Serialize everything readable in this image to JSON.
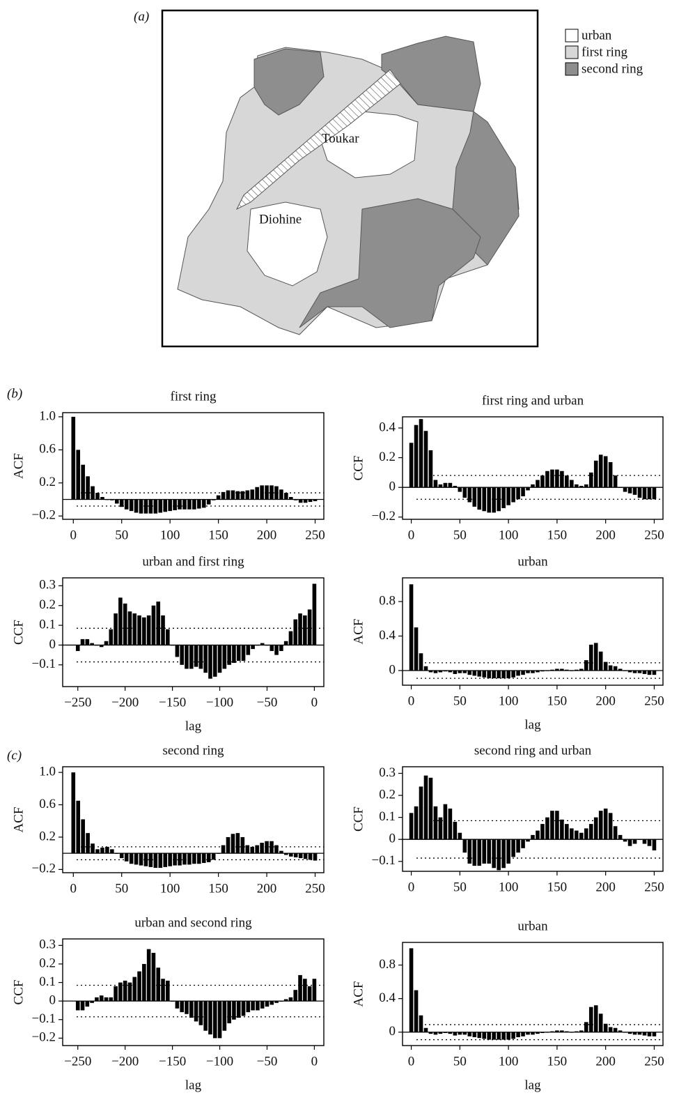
{
  "panel_a": {
    "label": "(a)",
    "legend": [
      "urban",
      "first ring",
      "second ring"
    ],
    "places": [
      "Toukar",
      "Diohine"
    ]
  },
  "panel_labels": [
    "(b)",
    "(c)"
  ],
  "chart_data": [
    {
      "type": "bar",
      "title": "first ring",
      "ylabel": "ACF",
      "x": [
        0,
        5,
        10,
        15,
        20,
        25,
        30,
        35,
        40,
        45,
        50,
        55,
        60,
        65,
        70,
        75,
        80,
        85,
        90,
        95,
        100,
        105,
        110,
        115,
        120,
        125,
        130,
        135,
        140,
        145,
        150,
        155,
        160,
        165,
        170,
        175,
        180,
        185,
        190,
        195,
        200,
        205,
        210,
        215,
        220,
        225,
        230,
        235,
        240,
        245,
        250
      ],
      "values": [
        1.0,
        0.6,
        0.42,
        0.28,
        0.16,
        0.08,
        0.03,
        0.0,
        -0.01,
        -0.05,
        -0.09,
        -0.12,
        -0.14,
        -0.16,
        -0.17,
        -0.17,
        -0.17,
        -0.17,
        -0.16,
        -0.15,
        -0.14,
        -0.13,
        -0.12,
        -0.12,
        -0.12,
        -0.12,
        -0.11,
        -0.1,
        -0.06,
        -0.01,
        0.05,
        0.09,
        0.11,
        0.11,
        0.1,
        0.1,
        0.11,
        0.12,
        0.15,
        0.17,
        0.17,
        0.17,
        0.16,
        0.12,
        0.08,
        0.03,
        -0.01,
        -0.04,
        -0.04,
        -0.03,
        -0.02
      ],
      "conf_limits": [
        0.08,
        -0.08
      ],
      "color": "#000000",
      "xlim": [
        -11,
        259
      ],
      "ylim": [
        -0.24,
        1.05
      ],
      "xticks": [
        0,
        50,
        100,
        150,
        200,
        250
      ],
      "yticks": [
        {
          "value": 1,
          "label": "1.0"
        },
        0.6,
        0.2,
        {
          "value": -0.2,
          "label": "−0.2"
        }
      ]
    },
    {
      "type": "bar",
      "title": "first ring and urban",
      "ylabel": "CCF",
      "x": [
        0,
        5,
        10,
        15,
        20,
        25,
        30,
        35,
        40,
        45,
        50,
        55,
        60,
        65,
        70,
        75,
        80,
        85,
        90,
        95,
        100,
        105,
        110,
        115,
        120,
        125,
        130,
        135,
        140,
        145,
        150,
        155,
        160,
        165,
        170,
        175,
        180,
        185,
        190,
        195,
        200,
        205,
        210,
        215,
        220,
        225,
        230,
        235,
        240,
        245,
        250
      ],
      "values": [
        0.3,
        0.42,
        0.46,
        0.38,
        0.25,
        0.05,
        0.02,
        0.03,
        0.03,
        0.01,
        -0.03,
        -0.07,
        -0.1,
        -0.13,
        -0.15,
        -0.16,
        -0.17,
        -0.17,
        -0.16,
        -0.14,
        -0.12,
        -0.1,
        -0.08,
        -0.06,
        -0.02,
        0.02,
        0.05,
        0.08,
        0.11,
        0.12,
        0.12,
        0.11,
        0.08,
        0.05,
        0.02,
        0.01,
        0.02,
        0.1,
        0.18,
        0.22,
        0.21,
        0.17,
        0.08,
        0.0,
        -0.03,
        -0.04,
        -0.05,
        -0.07,
        -0.08,
        -0.08,
        -0.08
      ],
      "conf_limits": [
        0.08,
        -0.08
      ],
      "color": "#000000",
      "xlim": [
        -9,
        259
      ],
      "ylim": [
        -0.215,
        0.475
      ],
      "xticks": [
        0,
        50,
        100,
        150,
        200,
        250
      ],
      "yticks": [
        0.4,
        0.2,
        0,
        {
          "value": -0.2,
          "label": "−0.2"
        }
      ]
    },
    {
      "type": "bar",
      "title": "urban and first ring",
      "ylabel": "CCF",
      "xlabel": "lag",
      "x": [
        -250,
        -245,
        -240,
        -235,
        -230,
        -225,
        -220,
        -215,
        -210,
        -205,
        -200,
        -195,
        -190,
        -185,
        -180,
        -175,
        -170,
        -165,
        -160,
        -155,
        -150,
        -145,
        -140,
        -135,
        -130,
        -125,
        -120,
        -115,
        -110,
        -105,
        -100,
        -95,
        -90,
        -85,
        -80,
        -75,
        -70,
        -65,
        -60,
        -55,
        -50,
        -45,
        -40,
        -35,
        -30,
        -25,
        -20,
        -15,
        -10,
        -5,
        0
      ],
      "values": [
        -0.03,
        0.03,
        0.03,
        0.01,
        0.0,
        -0.01,
        0.02,
        0.08,
        0.16,
        0.24,
        0.21,
        0.17,
        0.16,
        0.15,
        0.14,
        0.15,
        0.2,
        0.22,
        0.15,
        0.08,
        0.0,
        -0.06,
        -0.1,
        -0.12,
        -0.12,
        -0.11,
        -0.12,
        -0.14,
        -0.17,
        -0.16,
        -0.14,
        -0.12,
        -0.1,
        -0.09,
        -0.08,
        -0.08,
        -0.05,
        -0.02,
        0.0,
        0.01,
        0.0,
        -0.03,
        -0.05,
        -0.03,
        0.02,
        0.07,
        0.13,
        0.16,
        0.15,
        0.18,
        0.31
      ],
      "conf_limits": [
        0.085,
        -0.085
      ],
      "color": "#000000",
      "xlim": [
        -266,
        10
      ],
      "ylim": [
        -0.21,
        0.34
      ],
      "xticks": [
        {
          "value": -250,
          "label": "−250"
        },
        {
          "value": -200,
          "label": "−200"
        },
        {
          "value": -150,
          "label": "−150"
        },
        {
          "value": -100,
          "label": "−100"
        },
        {
          "value": -50,
          "label": "−50"
        },
        0
      ],
      "yticks": [
        0.3,
        0.2,
        0.1,
        0,
        {
          "value": -0.1,
          "label": "−0.1"
        }
      ]
    },
    {
      "type": "bar",
      "title": "urban",
      "ylabel": "ACF",
      "xlabel": "lag",
      "x": [
        0,
        5,
        10,
        15,
        20,
        25,
        30,
        35,
        40,
        45,
        50,
        55,
        60,
        65,
        70,
        75,
        80,
        85,
        90,
        95,
        100,
        105,
        110,
        115,
        120,
        125,
        130,
        135,
        140,
        145,
        150,
        155,
        160,
        165,
        170,
        175,
        180,
        185,
        190,
        195,
        200,
        205,
        210,
        215,
        220,
        225,
        230,
        235,
        240,
        245,
        250
      ],
      "values": [
        1.0,
        0.5,
        0.2,
        0.05,
        -0.02,
        -0.03,
        -0.02,
        -0.01,
        -0.02,
        -0.04,
        -0.03,
        -0.03,
        -0.05,
        -0.06,
        -0.07,
        -0.08,
        -0.09,
        -0.09,
        -0.09,
        -0.09,
        -0.09,
        -0.08,
        -0.06,
        -0.05,
        -0.03,
        -0.03,
        -0.02,
        -0.01,
        0.0,
        0.01,
        0.02,
        0.02,
        0.01,
        0.0,
        0.01,
        0.02,
        0.12,
        0.3,
        0.32,
        0.22,
        0.1,
        0.06,
        0.05,
        0.02,
        0.0,
        -0.02,
        -0.03,
        -0.03,
        -0.04,
        -0.05,
        -0.05
      ],
      "conf_limits": [
        0.09,
        -0.09
      ],
      "color": "#000000",
      "xlim": [
        -9,
        259
      ],
      "ylim": [
        -0.17,
        1.075
      ],
      "xticks": [
        0,
        50,
        100,
        150,
        200,
        250
      ],
      "yticks": [
        0.8,
        0.4,
        0
      ]
    },
    {
      "type": "bar",
      "title": "second ring",
      "ylabel": "ACF",
      "x": [
        0,
        5,
        10,
        15,
        20,
        25,
        30,
        35,
        40,
        45,
        50,
        55,
        60,
        65,
        70,
        75,
        80,
        85,
        90,
        95,
        100,
        105,
        110,
        115,
        120,
        125,
        130,
        135,
        140,
        145,
        150,
        155,
        160,
        165,
        170,
        175,
        180,
        185,
        190,
        195,
        200,
        205,
        210,
        215,
        220,
        225,
        230,
        235,
        240,
        245,
        250
      ],
      "values": [
        1.0,
        0.65,
        0.42,
        0.25,
        0.12,
        0.05,
        0.07,
        0.08,
        0.05,
        0.0,
        -0.06,
        -0.1,
        -0.13,
        -0.14,
        -0.15,
        -0.16,
        -0.17,
        -0.18,
        -0.18,
        -0.17,
        -0.16,
        -0.15,
        -0.15,
        -0.14,
        -0.14,
        -0.13,
        -0.13,
        -0.12,
        -0.11,
        -0.08,
        0.0,
        0.1,
        0.2,
        0.24,
        0.25,
        0.2,
        0.1,
        0.08,
        0.1,
        0.13,
        0.15,
        0.15,
        0.1,
        0.03,
        -0.02,
        -0.04,
        -0.05,
        -0.06,
        -0.07,
        -0.08,
        -0.09
      ],
      "conf_limits": [
        0.08,
        -0.08
      ],
      "color": "#000000",
      "xlim": [
        -11,
        259
      ],
      "ylim": [
        -0.24,
        1.07
      ],
      "xticks": [
        0,
        50,
        100,
        150,
        200,
        250
      ],
      "yticks": [
        {
          "value": 1,
          "label": "1.0"
        },
        0.6,
        0.2,
        {
          "value": -0.2,
          "label": "−0.2"
        }
      ]
    },
    {
      "type": "bar",
      "title": "second ring and urban",
      "ylabel": "CCF",
      "x": [
        0,
        5,
        10,
        15,
        20,
        25,
        30,
        35,
        40,
        45,
        50,
        55,
        60,
        65,
        70,
        75,
        80,
        85,
        90,
        95,
        100,
        105,
        110,
        115,
        120,
        125,
        130,
        135,
        140,
        145,
        150,
        155,
        160,
        165,
        170,
        175,
        180,
        185,
        190,
        195,
        200,
        205,
        210,
        215,
        220,
        225,
        230,
        235,
        240,
        245,
        250
      ],
      "values": [
        0.12,
        0.15,
        0.24,
        0.29,
        0.28,
        0.15,
        0.1,
        0.16,
        0.14,
        0.08,
        0.03,
        -0.06,
        -0.11,
        -0.12,
        -0.12,
        -0.11,
        -0.11,
        -0.13,
        -0.14,
        -0.13,
        -0.11,
        -0.08,
        -0.06,
        -0.04,
        -0.01,
        0.02,
        0.04,
        0.07,
        0.1,
        0.13,
        0.13,
        0.09,
        0.07,
        0.05,
        0.04,
        0.03,
        0.05,
        0.07,
        0.1,
        0.13,
        0.14,
        0.12,
        0.06,
        0.02,
        -0.01,
        -0.03,
        -0.02,
        0.0,
        -0.02,
        -0.03,
        -0.05
      ],
      "conf_limits": [
        0.085,
        -0.085
      ],
      "color": "#000000",
      "xlim": [
        -9,
        259
      ],
      "ylim": [
        -0.145,
        0.33
      ],
      "xticks": [
        0,
        50,
        100,
        150,
        200,
        250
      ],
      "yticks": [
        0.3,
        0.2,
        0.1,
        0,
        {
          "value": -0.1,
          "label": "−0.1"
        }
      ]
    },
    {
      "type": "bar",
      "title": "urban and second ring",
      "ylabel": "CCF",
      "xlabel": "lag",
      "x": [
        -250,
        -245,
        -240,
        -235,
        -230,
        -225,
        -220,
        -215,
        -210,
        -205,
        -200,
        -195,
        -190,
        -185,
        -180,
        -175,
        -170,
        -165,
        -160,
        -155,
        -150,
        -145,
        -140,
        -135,
        -130,
        -125,
        -120,
        -115,
        -110,
        -105,
        -100,
        -95,
        -90,
        -85,
        -80,
        -75,
        -70,
        -65,
        -60,
        -55,
        -50,
        -45,
        -40,
        -35,
        -30,
        -25,
        -20,
        -15,
        -10,
        -5,
        0
      ],
      "values": [
        -0.05,
        -0.05,
        -0.03,
        -0.01,
        0.02,
        0.03,
        0.02,
        0.02,
        0.08,
        0.1,
        0.11,
        0.1,
        0.13,
        0.16,
        0.2,
        0.28,
        0.26,
        0.18,
        0.12,
        0.11,
        0.0,
        -0.04,
        -0.06,
        -0.07,
        -0.09,
        -0.11,
        -0.13,
        -0.16,
        -0.18,
        -0.2,
        -0.2,
        -0.16,
        -0.12,
        -0.1,
        -0.09,
        -0.08,
        -0.06,
        -0.05,
        -0.05,
        -0.04,
        -0.03,
        -0.02,
        -0.01,
        0.0,
        0.01,
        0.02,
        0.06,
        0.14,
        0.12,
        0.08,
        0.12
      ],
      "conf_limits": [
        0.085,
        -0.085
      ],
      "color": "#000000",
      "xlim": [
        -266,
        10
      ],
      "ylim": [
        -0.24,
        0.335
      ],
      "xticks": [
        {
          "value": -250,
          "label": "−250"
        },
        {
          "value": -200,
          "label": "−200"
        },
        {
          "value": -150,
          "label": "−150"
        },
        {
          "value": -100,
          "label": "−100"
        },
        {
          "value": -50,
          "label": "−50"
        },
        0
      ],
      "yticks": [
        0.3,
        0.2,
        0.1,
        0,
        {
          "value": -0.1,
          "label": "−0.1"
        },
        {
          "value": -0.2,
          "label": "−0.2"
        }
      ]
    },
    {
      "type": "bar",
      "title": "urban",
      "ylabel": "ACF",
      "xlabel": "lag",
      "x": [
        0,
        5,
        10,
        15,
        20,
        25,
        30,
        35,
        40,
        45,
        50,
        55,
        60,
        65,
        70,
        75,
        80,
        85,
        90,
        95,
        100,
        105,
        110,
        115,
        120,
        125,
        130,
        135,
        140,
        145,
        150,
        155,
        160,
        165,
        170,
        175,
        180,
        185,
        190,
        195,
        200,
        205,
        210,
        215,
        220,
        225,
        230,
        235,
        240,
        245,
        250
      ],
      "values": [
        1.0,
        0.5,
        0.2,
        0.05,
        -0.02,
        -0.03,
        -0.02,
        -0.01,
        -0.02,
        -0.04,
        -0.03,
        -0.03,
        -0.05,
        -0.06,
        -0.07,
        -0.08,
        -0.09,
        -0.09,
        -0.09,
        -0.09,
        -0.09,
        -0.08,
        -0.06,
        -0.05,
        -0.03,
        -0.03,
        -0.02,
        -0.01,
        0.0,
        0.01,
        0.02,
        0.02,
        0.01,
        0.0,
        0.01,
        0.02,
        0.12,
        0.3,
        0.32,
        0.22,
        0.1,
        0.06,
        0.05,
        0.02,
        0.0,
        -0.02,
        -0.03,
        -0.03,
        -0.04,
        -0.05,
        -0.05
      ],
      "conf_limits": [
        0.09,
        -0.09
      ],
      "color": "#000000",
      "xlim": [
        -9,
        259
      ],
      "ylim": [
        -0.16,
        1.07
      ],
      "xticks": [
        0,
        50,
        100,
        150,
        200,
        250
      ],
      "yticks": [
        0.8,
        0.4,
        0
      ]
    }
  ]
}
